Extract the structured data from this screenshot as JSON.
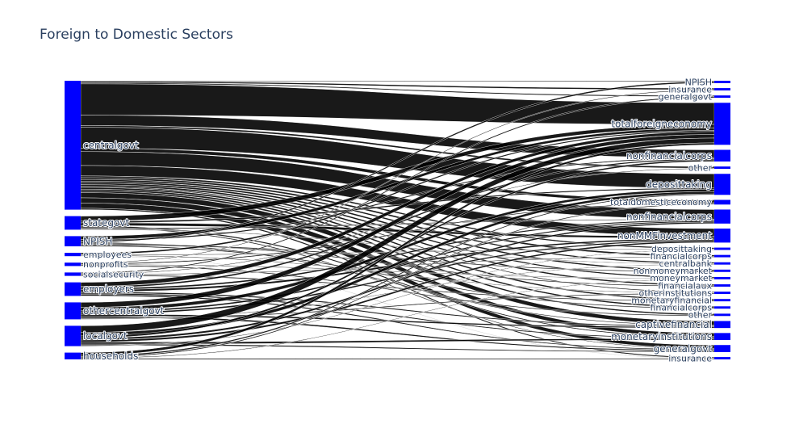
{
  "chart_data": {
    "type": "sankey",
    "title": "Foreign to Domestic Sectors",
    "node_color": "#0000ff",
    "link_color": "#000000",
    "sources": [
      {
        "label": "centralgovt",
        "value": 38
      },
      {
        "label": "stategovt",
        "value": 4
      },
      {
        "label": "NPISH",
        "value": 3
      },
      {
        "label": "employees",
        "value": 1
      },
      {
        "label": "nonprofits",
        "value": 1
      },
      {
        "label": "socialsecurity",
        "value": 1
      },
      {
        "label": "employers",
        "value": 4
      },
      {
        "label": "othercentralgovt",
        "value": 5
      },
      {
        "label": "localgovt",
        "value": 6
      },
      {
        "label": "households",
        "value": 2
      }
    ],
    "targets": [
      {
        "label": "NPISH",
        "value": 1
      },
      {
        "label": "insurance",
        "value": 1
      },
      {
        "label": "generalgovt",
        "value": 1
      },
      {
        "label": "totalforeigneconomy",
        "value": 18
      },
      {
        "label": "nonfinancialcorps",
        "value": 5
      },
      {
        "label": "other",
        "value": 1
      },
      {
        "label": "deposittaking",
        "value": 9
      },
      {
        "label": "totaldomesticeconomy",
        "value": 2
      },
      {
        "label": "nonfinancialcorps",
        "value": 6
      },
      {
        "label": "nonMMFinvestment",
        "value": 6
      },
      {
        "label": "deposittaking",
        "value": 1
      },
      {
        "label": "financialcorps",
        "value": 1
      },
      {
        "label": "centralbank",
        "value": 1
      },
      {
        "label": "nonmoneymarket",
        "value": 1
      },
      {
        "label": "moneymarket",
        "value": 1
      },
      {
        "label": "financialaux",
        "value": 1
      },
      {
        "label": "otherinstitutions",
        "value": 1
      },
      {
        "label": "monetaryfinancial",
        "value": 1
      },
      {
        "label": "financialcorps",
        "value": 1
      },
      {
        "label": "other",
        "value": 1
      },
      {
        "label": "captivefinancial",
        "value": 3
      },
      {
        "label": "monetaryinstitutions",
        "value": 3
      },
      {
        "label": "generalgovt",
        "value": 3
      },
      {
        "label": "insurance",
        "value": 1
      }
    ],
    "links": [
      [
        0,
        0,
        0.2
      ],
      [
        0,
        1,
        0.4
      ],
      [
        0,
        2,
        0.3
      ],
      [
        0,
        3,
        9
      ],
      [
        0,
        4,
        3
      ],
      [
        0,
        5,
        0.5
      ],
      [
        0,
        6,
        6
      ],
      [
        0,
        7,
        1
      ],
      [
        0,
        8,
        4
      ],
      [
        0,
        9,
        3
      ],
      [
        0,
        10,
        0.5
      ],
      [
        0,
        11,
        0.5
      ],
      [
        0,
        12,
        0.5
      ],
      [
        0,
        13,
        0.5
      ],
      [
        0,
        14,
        0.5
      ],
      [
        0,
        15,
        0.5
      ],
      [
        0,
        16,
        0.3
      ],
      [
        0,
        17,
        0.5
      ],
      [
        0,
        18,
        0.5
      ],
      [
        0,
        19,
        0.5
      ],
      [
        0,
        20,
        1.5
      ],
      [
        0,
        21,
        1.5
      ],
      [
        0,
        22,
        1.5
      ],
      [
        0,
        23,
        0.4
      ],
      [
        1,
        3,
        1.5
      ],
      [
        1,
        6,
        0.5
      ],
      [
        1,
        9,
        0.8
      ],
      [
        1,
        21,
        0.4
      ],
      [
        1,
        22,
        0.3
      ],
      [
        1,
        8,
        0.3
      ],
      [
        1,
        12,
        0.2
      ],
      [
        2,
        3,
        1
      ],
      [
        2,
        4,
        0.4
      ],
      [
        2,
        0,
        0.4
      ],
      [
        2,
        20,
        0.3
      ],
      [
        2,
        15,
        0.3
      ],
      [
        2,
        13,
        0.3
      ],
      [
        2,
        18,
        0.3
      ],
      [
        3,
        3,
        0.5
      ],
      [
        3,
        10,
        0.2
      ],
      [
        3,
        16,
        0.2
      ],
      [
        3,
        23,
        0.1
      ],
      [
        4,
        1,
        0.2
      ],
      [
        4,
        7,
        0.3
      ],
      [
        4,
        14,
        0.2
      ],
      [
        4,
        19,
        0.3
      ],
      [
        5,
        2,
        0.3
      ],
      [
        5,
        5,
        0.2
      ],
      [
        5,
        11,
        0.2
      ],
      [
        5,
        17,
        0.3
      ],
      [
        6,
        3,
        1.2
      ],
      [
        6,
        4,
        0.5
      ],
      [
        6,
        8,
        0.5
      ],
      [
        6,
        9,
        0.6
      ],
      [
        6,
        20,
        0.4
      ],
      [
        6,
        21,
        0.4
      ],
      [
        6,
        22,
        0.4
      ],
      [
        7,
        3,
        1.5
      ],
      [
        7,
        6,
        1
      ],
      [
        7,
        8,
        0.5
      ],
      [
        7,
        9,
        0.5
      ],
      [
        7,
        20,
        0.5
      ],
      [
        7,
        22,
        0.5
      ],
      [
        7,
        16,
        0.3
      ],
      [
        7,
        12,
        0.2
      ],
      [
        8,
        3,
        2
      ],
      [
        8,
        6,
        1
      ],
      [
        8,
        4,
        0.6
      ],
      [
        8,
        8,
        0.6
      ],
      [
        8,
        9,
        0.6
      ],
      [
        8,
        21,
        0.6
      ],
      [
        8,
        22,
        0.4
      ],
      [
        8,
        10,
        0.2
      ],
      [
        9,
        3,
        0.8
      ],
      [
        9,
        6,
        0.4
      ],
      [
        9,
        7,
        0.3
      ],
      [
        9,
        14,
        0.2
      ],
      [
        9,
        23,
        0.3
      ]
    ]
  }
}
